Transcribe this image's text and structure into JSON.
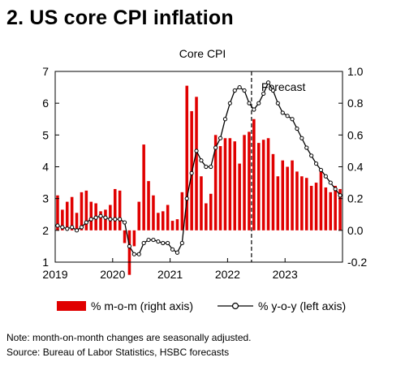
{
  "title": "2. US core CPI inflation",
  "chart_data": {
    "type": "bar+line",
    "title": "Core CPI",
    "forecast_label": "Forecast",
    "forecast_start": "2022-06",
    "x_ticks": [
      "2019",
      "2020",
      "2021",
      "2022",
      "2023"
    ],
    "left_axis": {
      "ylim": [
        1,
        7
      ],
      "ticks": [
        "7",
        "6",
        "5",
        "4",
        "3",
        "2",
        "1"
      ]
    },
    "right_axis": {
      "ylim": [
        -0.2,
        1.0
      ],
      "ticks": [
        "1.0",
        "0.8",
        "0.6",
        "0.4",
        "0.2",
        "0.0",
        "-0.2"
      ]
    },
    "grid": false,
    "months": [
      "2019-01",
      "2019-02",
      "2019-03",
      "2019-04",
      "2019-05",
      "2019-06",
      "2019-07",
      "2019-08",
      "2019-09",
      "2019-10",
      "2019-11",
      "2019-12",
      "2020-01",
      "2020-02",
      "2020-03",
      "2020-04",
      "2020-05",
      "2020-06",
      "2020-07",
      "2020-08",
      "2020-09",
      "2020-10",
      "2020-11",
      "2020-12",
      "2021-01",
      "2021-02",
      "2021-03",
      "2021-04",
      "2021-05",
      "2021-06",
      "2021-07",
      "2021-08",
      "2021-09",
      "2021-10",
      "2021-11",
      "2021-12",
      "2022-01",
      "2022-02",
      "2022-03",
      "2022-04",
      "2022-05",
      "2022-06",
      "2022-07",
      "2022-08",
      "2022-09",
      "2022-10",
      "2022-11",
      "2022-12",
      "2023-01",
      "2023-02",
      "2023-03",
      "2023-04",
      "2023-05",
      "2023-06",
      "2023-07",
      "2023-08",
      "2023-09",
      "2023-10",
      "2023-11",
      "2023-12"
    ],
    "series": [
      {
        "name": "% m-o-m (right axis)",
        "type": "bar",
        "axis": "right",
        "color": "#e00000",
        "values": [
          0.22,
          0.13,
          0.18,
          0.21,
          0.11,
          0.24,
          0.25,
          0.18,
          0.17,
          0.12,
          0.13,
          0.16,
          0.26,
          0.25,
          -0.08,
          -0.28,
          -0.1,
          0.18,
          0.54,
          0.31,
          0.22,
          0.11,
          0.12,
          0.16,
          0.06,
          0.07,
          0.24,
          0.91,
          0.75,
          0.84,
          0.34,
          0.17,
          0.23,
          0.6,
          0.53,
          0.58,
          0.58,
          0.56,
          0.42,
          0.6,
          0.62,
          0.7,
          0.55,
          0.57,
          0.58,
          0.48,
          0.34,
          0.44,
          0.4,
          0.44,
          0.37,
          0.34,
          0.33,
          0.28,
          0.3,
          0.38,
          0.27,
          0.24,
          0.28,
          0.26
        ]
      },
      {
        "name": "% y-o-y (left axis)",
        "type": "line",
        "axis": "left",
        "color": "#000000",
        "values": [
          2.15,
          2.1,
          2.05,
          2.1,
          2.0,
          2.1,
          2.25,
          2.35,
          2.4,
          2.45,
          2.4,
          2.35,
          2.35,
          2.35,
          2.25,
          1.5,
          1.25,
          1.25,
          1.6,
          1.7,
          1.7,
          1.65,
          1.6,
          1.6,
          1.4,
          1.3,
          1.6,
          3.0,
          3.8,
          4.5,
          4.2,
          4.0,
          4.0,
          4.6,
          4.9,
          5.5,
          6.0,
          6.4,
          6.5,
          6.4,
          6.0,
          5.8,
          6.0,
          6.3,
          6.65,
          6.4,
          6.0,
          5.7,
          5.6,
          5.5,
          5.2,
          4.9,
          4.6,
          4.35,
          4.1,
          3.9,
          3.7,
          3.5,
          3.3,
          3.1
        ]
      }
    ]
  },
  "notes": [
    "Note: month-on-month changes are seasonally adjusted.",
    "Source: Bureau of Labor Statistics, HSBC forecasts"
  ]
}
